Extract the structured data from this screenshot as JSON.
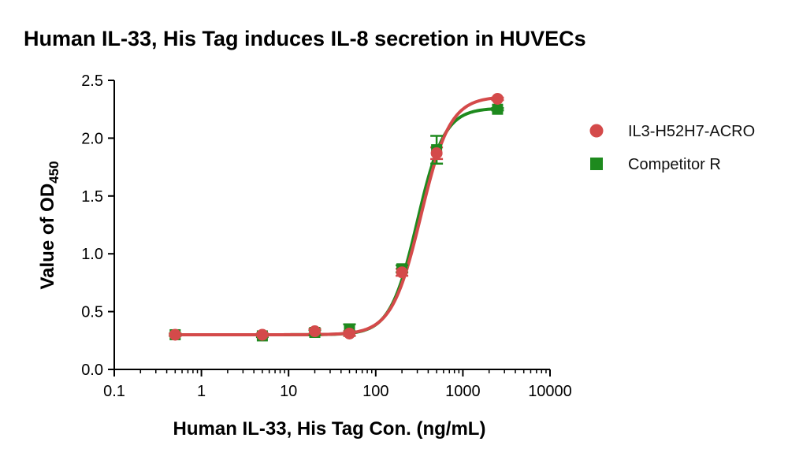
{
  "chart_data": {
    "type": "scatter",
    "title": "Human IL-33, His Tag induces IL-8 secretion in HUVECs",
    "xlabel": "Human IL-33, His Tag Con. (ng/mL)",
    "ylabel_main": "Value of OD",
    "ylabel_subscript": "450",
    "x_scale": "log",
    "xlim": [
      0.1,
      10000
    ],
    "ylim": [
      0.0,
      2.5
    ],
    "x_ticks": [
      0.1,
      1,
      10,
      100,
      1000,
      10000
    ],
    "x_tick_labels": [
      "0.1",
      "1",
      "10",
      "100",
      "1000",
      "10000"
    ],
    "y_ticks": [
      0.0,
      0.5,
      1.0,
      1.5,
      2.0,
      2.5
    ],
    "y_tick_labels": [
      "0.0",
      "0.5",
      "1.0",
      "1.5",
      "2.0",
      "2.5"
    ],
    "grid": false,
    "legend_position": "right",
    "series": [
      {
        "name": "IL3-H52H7-ACRO",
        "color": "#d44a4a",
        "marker": "circle",
        "x": [
          0.5,
          5,
          20,
          50,
          200,
          500,
          2500
        ],
        "y": [
          0.3,
          0.3,
          0.33,
          0.31,
          0.84,
          1.87,
          2.34
        ],
        "error": [
          0.01,
          0.01,
          0.02,
          0.02,
          0.03,
          0.05,
          0.01
        ],
        "fit": {
          "bottom": 0.3,
          "top": 2.36,
          "ec50": 330,
          "hill": 2.6
        }
      },
      {
        "name": "Competitor R",
        "color": "#1e8a1e",
        "marker": "square",
        "x": [
          0.5,
          5,
          20,
          50,
          200,
          500,
          2500
        ],
        "y": [
          0.3,
          0.29,
          0.32,
          0.34,
          0.87,
          1.9,
          2.25
        ],
        "error": [
          0.01,
          0.01,
          0.02,
          0.05,
          0.03,
          0.12,
          0.01
        ],
        "fit": {
          "bottom": 0.3,
          "top": 2.26,
          "ec50": 300,
          "hill": 2.8
        }
      }
    ]
  }
}
